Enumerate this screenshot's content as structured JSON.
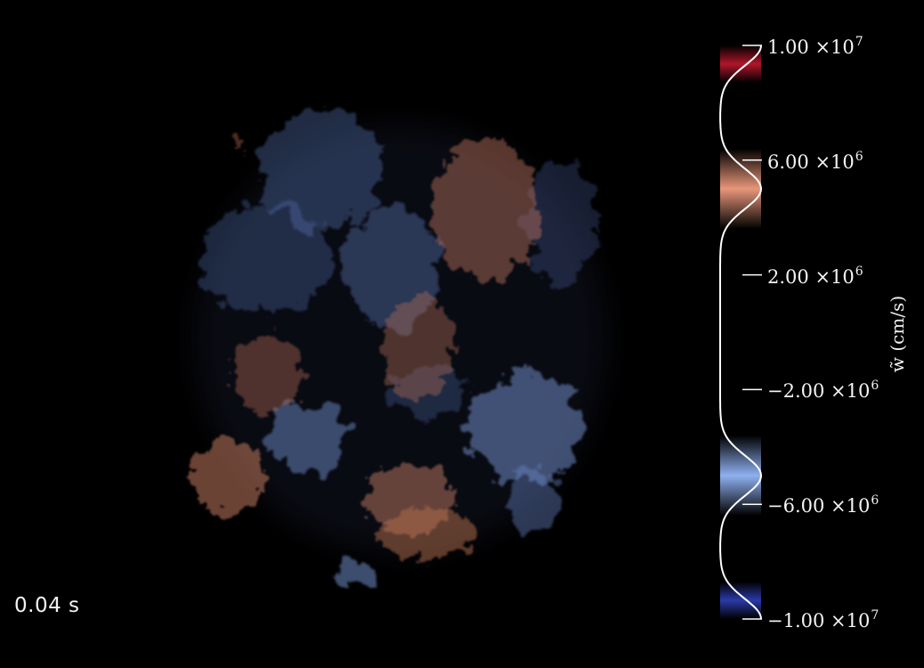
{
  "time_readout": "0.04 s",
  "colorbar": {
    "axis_label": "w̃  (cm/s)",
    "ticks": [
      {
        "mantissa": "1.00",
        "times": "×10",
        "exponent": "7",
        "value": 10000000
      },
      {
        "mantissa": "6.00",
        "times": "×10",
        "exponent": "6",
        "value": 6000000
      },
      {
        "mantissa": "2.00",
        "times": "×10",
        "exponent": "6",
        "value": 2000000
      },
      {
        "mantissa": "−2.00",
        "times": "×10",
        "exponent": "6",
        "value": -2000000
      },
      {
        "mantissa": "−6.00",
        "times": "×10",
        "exponent": "6",
        "value": -6000000
      },
      {
        "mantissa": "−1.00",
        "times": "×10",
        "exponent": "7",
        "value": -10000000
      }
    ],
    "range": [
      -10000000,
      10000000
    ],
    "colors": {
      "positive_high": "#b0162a",
      "positive_mid": "#e8967a",
      "negative_mid": "#8fb0f0",
      "negative_high": "#2a3aa8"
    }
  }
}
